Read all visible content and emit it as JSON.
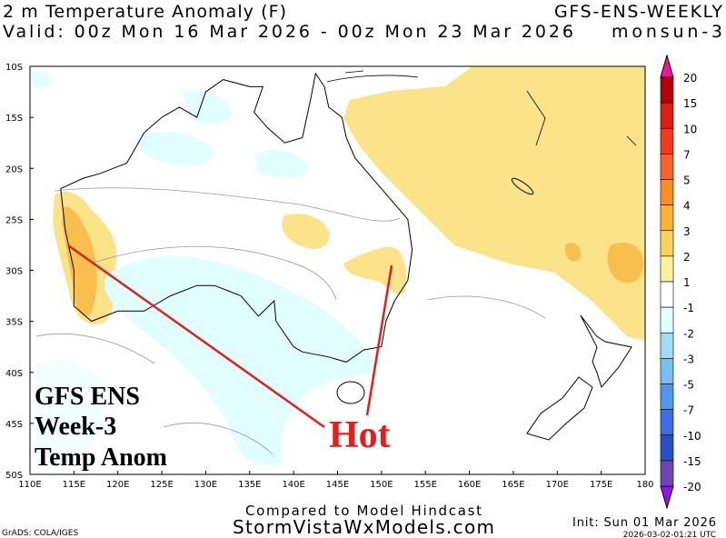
{
  "header": {
    "title": "2 m Temperature Anomaly (F)",
    "valid": "Valid: 00z Mon 16 Mar 2026 - 00z Mon 23 Mar 2026",
    "model": "GFS-ENS-WEEKLY",
    "run": "monsun-3"
  },
  "map": {
    "lat_labels": [
      "10S",
      "15S",
      "20S",
      "25S",
      "30S",
      "35S",
      "40S",
      "45S",
      "50S"
    ],
    "lon_labels": [
      "110E",
      "115E",
      "120E",
      "125E",
      "130E",
      "135E",
      "140E",
      "145E",
      "150E",
      "155E",
      "160E",
      "165E",
      "170E",
      "175E",
      "180"
    ]
  },
  "colorbar": {
    "labels": [
      "20",
      "15",
      "10",
      "7",
      "5",
      "4",
      "3",
      "2",
      "1",
      "-1",
      "-2",
      "-3",
      "-5",
      "-7",
      "-10",
      "-15",
      "-20"
    ],
    "colors": [
      "#f0149b",
      "#b40000",
      "#dc1e14",
      "#f03c1e",
      "#f5642d",
      "#fa8c28",
      "#fab432",
      "#fad25a",
      "#fff0a0",
      "#ffffff",
      "#e1ffff",
      "#a0dcf5",
      "#78bef0",
      "#5096eb",
      "#3c6ee6",
      "#2850c8",
      "#6e46b4",
      "#9614e6"
    ]
  },
  "annotations": {
    "label_lines": [
      "GFS ENS",
      "Week-3",
      "Temp Anom"
    ],
    "hot": "Hot"
  },
  "footer": {
    "compared": "Compared to Model Hindcast",
    "site": "StormVistaWxModels.com",
    "credit": "GrADS: COLA/IGES",
    "init": "Init: Sun 01 Mar 2026",
    "stamp": "2026-03-02-01:21 UTC"
  }
}
